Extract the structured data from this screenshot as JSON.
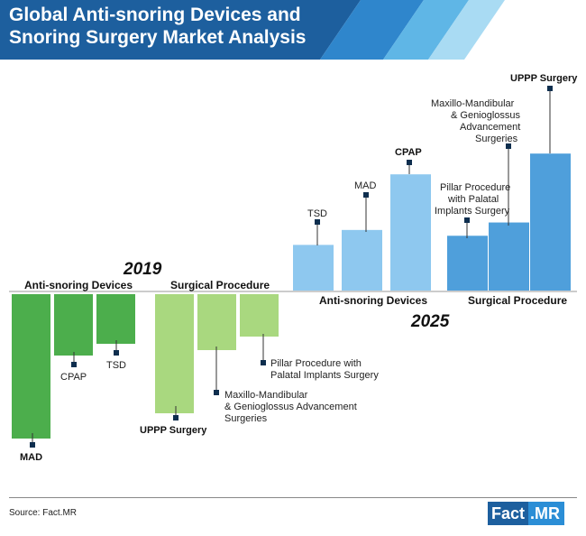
{
  "title": {
    "line1": "Global Anti-snoring Devices and",
    "line2": "Snoring Surgery Market Analysis"
  },
  "colors": {
    "header_dark": "#1d5f9e",
    "header_light": "#5fb6e6",
    "green_dark": "#4cae4c",
    "green_light": "#a9d87f",
    "blue_light": "#8ec8ef",
    "blue_mid": "#4f9fdb"
  },
  "chart_data": [
    {
      "type": "bar",
      "title": "2019",
      "direction": "downward",
      "groups": [
        {
          "name": "Anti-snoring Devices",
          "categories": [
            "MAD",
            "CPAP",
            "TSD"
          ],
          "values": [
            160,
            68,
            55
          ]
        },
        {
          "name": "Surgical Procedure",
          "categories": [
            "UPPP Surgery",
            "Maxillo-Mandibular & Genioglossus Advancement Surgeries",
            "Pillar Procedure with Palatal Implants Surgery"
          ],
          "values": [
            132,
            62,
            47
          ]
        }
      ],
      "note": "Relative magnitudes only; no value axis shown"
    },
    {
      "type": "bar",
      "title": "2025",
      "direction": "upward",
      "groups": [
        {
          "name": "Anti-snoring Devices",
          "categories": [
            "TSD",
            "MAD",
            "CPAP"
          ],
          "values": [
            55,
            73,
            140
          ]
        },
        {
          "name": "Surgical Procedure",
          "categories": [
            "Pillar Procedure with Palatal Implants Surgery",
            "Maxillo-Mandibular & Genioglossus Advancement Surgeries",
            "UPPP Surgery"
          ],
          "values": [
            66,
            82,
            165
          ]
        }
      ],
      "note": "Relative magnitudes only; no value axis shown"
    }
  ],
  "labels": {
    "y19": {
      "year": "2019",
      "group1": "Anti-snoring Devices",
      "group2": "Surgical Procedure",
      "mad": "MAD",
      "cpap": "CPAP",
      "tsd": "TSD",
      "uppp": "UPPP Surgery",
      "mmga": [
        "Maxillo-Mandibular",
        "& Genioglossus Advancement",
        "Surgeries"
      ],
      "pillar": [
        "Pillar Procedure with",
        "Palatal Implants Surgery"
      ]
    },
    "y25": {
      "year": "2025",
      "group1": "Anti-snoring Devices",
      "group2": "Surgical Procedure",
      "tsd": "TSD",
      "mad": "MAD",
      "cpap": "CPAP",
      "pillar": [
        "Pillar Procedure",
        "with Palatal",
        "Implants Surgery"
      ],
      "mmga": [
        "Maxillo-Mandibular",
        "& Genioglossus",
        "Advancement",
        "Surgeries"
      ],
      "uppp": "UPPP Surgery"
    }
  },
  "footer": {
    "source": "Source: Fact.MR",
    "logo_part1": "Fact",
    "logo_part2": ".MR"
  }
}
